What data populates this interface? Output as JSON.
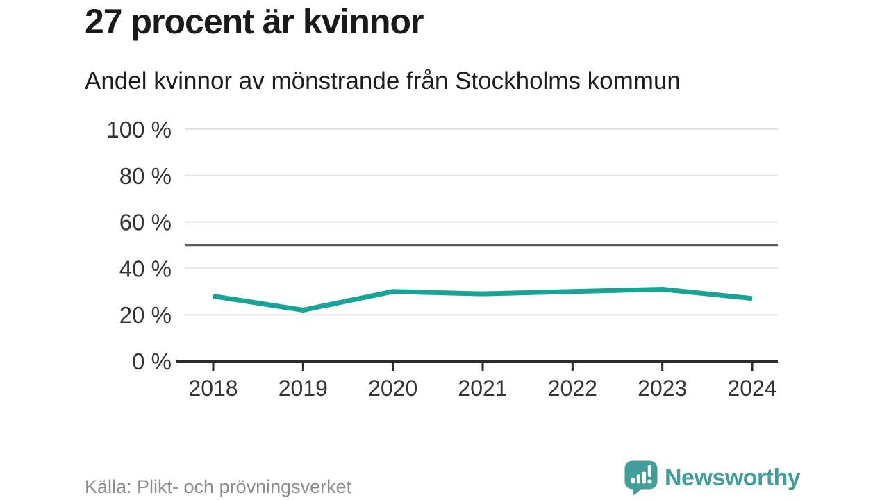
{
  "header": {
    "title": "27 procent är kvinnor",
    "subtitle": "Andel kvinnor av mönstrande från Stockholms kommun"
  },
  "chart_data": {
    "type": "line",
    "title": "27 procent är kvinnor",
    "subtitle": "Andel kvinnor av mönstrande från Stockholms kommun",
    "x": [
      "2018",
      "2019",
      "2020",
      "2021",
      "2022",
      "2023",
      "2024"
    ],
    "series": [
      {
        "name": "Andel kvinnor av mönstrande",
        "values": [
          28,
          22,
          30,
          29,
          30,
          31,
          27
        ]
      }
    ],
    "unit": "%",
    "ylim": [
      0,
      100
    ],
    "yticks": [
      0,
      20,
      40,
      60,
      80,
      100
    ],
    "ytick_label_suffix": " %",
    "reference_line_y": 50,
    "grid": true,
    "legend": false,
    "line_color": "#17a396",
    "reference_line_color": "#5c5c5c",
    "grid_color": "#e3e3e3",
    "axis_color": "#2b2b2b",
    "tick_label_color": "#333333"
  },
  "footer": {
    "source": "Källa: Plikt- och prövningsverket",
    "brand_name": "Newsworthy",
    "brand_color": "#409e9b"
  }
}
